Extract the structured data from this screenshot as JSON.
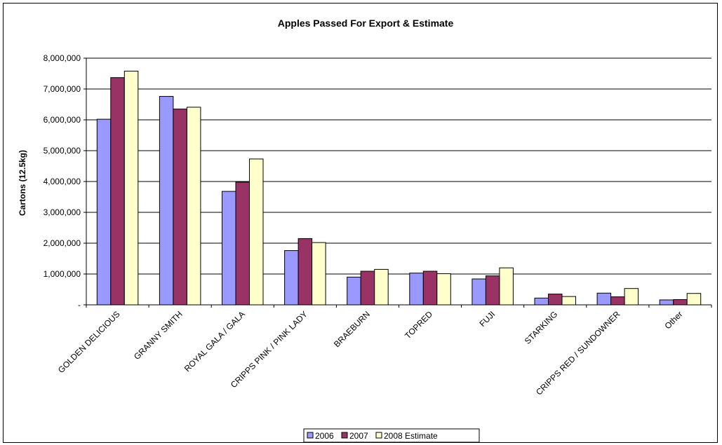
{
  "chart_data": {
    "type": "bar",
    "title": "Apples Passed For Export & Estimate",
    "ylabel": "Cartons (12.5kg)",
    "xlabel": "",
    "ylim": [
      0,
      8000000
    ],
    "y_ticks": [
      "-",
      "1,000,000",
      "2,000,000",
      "3,000,000",
      "4,000,000",
      "5,000,000",
      "6,000,000",
      "7,000,000",
      "8,000,000"
    ],
    "y_tick_values": [
      0,
      1000000,
      2000000,
      3000000,
      4000000,
      5000000,
      6000000,
      7000000,
      8000000
    ],
    "grid": true,
    "legend_position": "bottom",
    "categories": [
      "GOLDEN DELICIOUS",
      "GRANNY SMITH",
      "ROYAL GALA / GALA",
      "CRIPPS PINK / PINK LADY",
      "BRAEBURN",
      "TOPRED",
      "FUJI",
      "STARKING",
      "CRIPPS RED / SUNDOWNER",
      "Other"
    ],
    "series": [
      {
        "name": "2006",
        "color": "#9999FF",
        "values": [
          6020000,
          6760000,
          3680000,
          1760000,
          900000,
          1030000,
          840000,
          220000,
          380000,
          160000
        ]
      },
      {
        "name": "2007",
        "color": "#993366",
        "values": [
          7370000,
          6350000,
          3980000,
          2150000,
          1090000,
          1090000,
          940000,
          350000,
          260000,
          170000
        ]
      },
      {
        "name": "2008 Estimate",
        "color": "#FFFFCC",
        "values": [
          7580000,
          6410000,
          4730000,
          2020000,
          1150000,
          1010000,
          1200000,
          270000,
          530000,
          370000
        ]
      }
    ]
  }
}
